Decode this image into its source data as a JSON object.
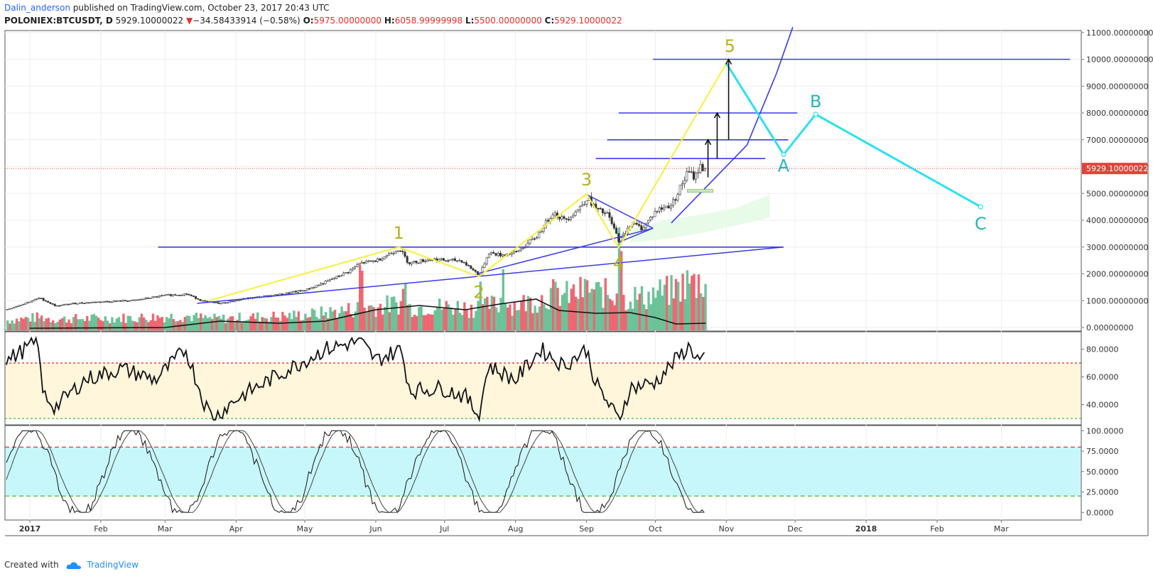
{
  "header": {
    "author": "Dalin_anderson",
    "published_text": "published on TradingView.com, October 23, 2017 20:43 UTC"
  },
  "ohlc": {
    "symbol": "POLONIEX:BTCUSDT, D",
    "last": "5929.10000022",
    "change": "−34.58433914 (−0.58%)",
    "o_label": "O:",
    "o": "5975.00000000",
    "h_label": "H:",
    "h": "6058.99999998",
    "l_label": "L:",
    "l": "5500.00000000",
    "c_label": "C:",
    "c": "5929.10000022"
  },
  "footer": {
    "created_with": "Created with",
    "brand": "TradingView"
  },
  "colors": {
    "up": "#53b987",
    "down": "#eb4d5c",
    "trendline": "#3a3ae8",
    "wave_yellow": "#f7f03a",
    "wave_label": "#b8b01a",
    "abc_line": "#2de0f0",
    "abc_label": "#26b5be",
    "price_tag": "#e0433a",
    "rsi_band": "#fff6dc",
    "stoch_band": "#c8f7fb"
  },
  "chart_data": {
    "type": "candlestick",
    "price_axis": {
      "ticks": [
        "11000.00000000",
        "10000.00000000",
        "9000.00000000",
        "8000.00000000",
        "7000.00000000",
        "6000.00000000",
        "5000.00000000",
        "4000.00000000",
        "3000.00000000",
        "2000.00000000",
        "1000.00000000",
        "0.00000000"
      ],
      "ylim": [
        0,
        11000
      ],
      "last_price_tag": "5929.10000022",
      "last_price": 5929.1
    },
    "time_axis": {
      "labels": [
        "2017",
        "Feb",
        "Mar",
        "Apr",
        "May",
        "Jun",
        "Jul",
        "Aug",
        "Sep",
        "Oct",
        "Nov",
        "Dec",
        "2018",
        "Feb",
        "Mar"
      ]
    },
    "price_path": [
      [
        "2017-01-01",
        980
      ],
      [
        "2017-01-05",
        1100
      ],
      [
        "2017-01-12",
        800
      ],
      [
        "2017-01-20",
        900
      ],
      [
        "2017-02-01",
        960
      ],
      [
        "2017-02-15",
        1010
      ],
      [
        "2017-03-01",
        1200
      ],
      [
        "2017-03-10",
        1250
      ],
      [
        "2017-03-18",
        960
      ],
      [
        "2017-03-25",
        900
      ],
      [
        "2017-04-05",
        1080
      ],
      [
        "2017-04-20",
        1230
      ],
      [
        "2017-05-01",
        1400
      ],
      [
        "2017-05-10",
        1700
      ],
      [
        "2017-05-20",
        2100
      ],
      [
        "2017-05-25",
        2400
      ],
      [
        "2017-06-01",
        2500
      ],
      [
        "2017-06-11",
        2950
      ],
      [
        "2017-06-15",
        2400
      ],
      [
        "2017-06-25",
        2550
      ],
      [
        "2017-07-01",
        2500
      ],
      [
        "2017-07-08",
        2500
      ],
      [
        "2017-07-16",
        1950
      ],
      [
        "2017-07-20",
        2800
      ],
      [
        "2017-07-25",
        2700
      ],
      [
        "2017-08-01",
        2800
      ],
      [
        "2017-08-10",
        3400
      ],
      [
        "2017-08-17",
        4300
      ],
      [
        "2017-08-22",
        4000
      ],
      [
        "2017-08-28",
        4400
      ],
      [
        "2017-09-01",
        4850
      ],
      [
        "2017-09-05",
        4400
      ],
      [
        "2017-09-10",
        4200
      ],
      [
        "2017-09-15",
        3200
      ],
      [
        "2017-09-20",
        3900
      ],
      [
        "2017-09-25",
        3700
      ],
      [
        "2017-10-01",
        4350
      ],
      [
        "2017-10-08",
        4600
      ],
      [
        "2017-10-12",
        5300
      ],
      [
        "2017-10-15",
        5800
      ],
      [
        "2017-10-18",
        5600
      ],
      [
        "2017-10-20",
        6000
      ],
      [
        "2017-10-23",
        5929
      ]
    ],
    "wave_labels": [
      {
        "label": "1",
        "date": "2017-06-11",
        "value": 3000
      },
      {
        "label": "2",
        "date": "2017-07-16",
        "value": 1900
      },
      {
        "label": "3",
        "date": "2017-09-01",
        "value": 4980
      },
      {
        "label": "4",
        "date": "2017-09-15",
        "value": 2980
      },
      {
        "label": "5",
        "date": "2017-11-01",
        "value": 9850
      },
      {
        "label": "A",
        "date": "2017-11-26",
        "value": 6450
      },
      {
        "label": "B",
        "date": "2017-12-10",
        "value": 7950
      },
      {
        "label": "C",
        "date": "2018-02-20",
        "value": 4500
      }
    ],
    "horizontal_levels": [
      3000,
      6300,
      7000,
      8000,
      10000
    ],
    "rsi": {
      "ticks": [
        "80.0000",
        "60.0000",
        "40.0000"
      ],
      "ylim": [
        28,
        90
      ],
      "upper_band": 70,
      "lower_band": 30
    },
    "stoch": {
      "ticks": [
        "100.0000",
        "75.0000",
        "50.0000",
        "25.0000",
        "0.0000"
      ],
      "ylim": [
        -5,
        102
      ],
      "upper_band": 80,
      "lower_band": 20
    }
  }
}
